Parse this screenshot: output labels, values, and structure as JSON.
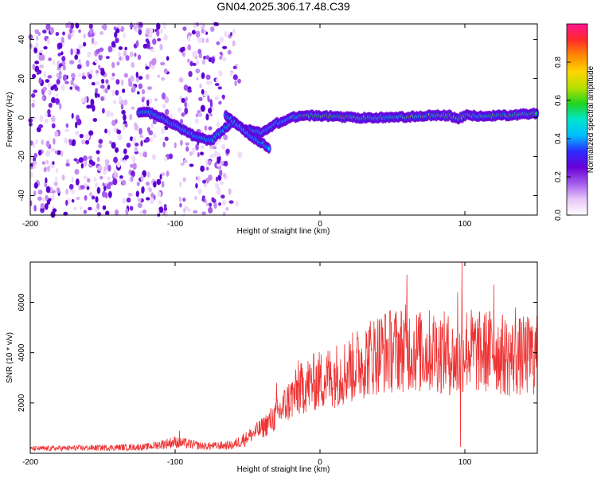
{
  "title": "GN04.2025.306.17.48.C39",
  "chart_data": [
    {
      "type": "heatmap",
      "name": "spectrogram",
      "xlabel": "Height of straight line (km)",
      "ylabel": "Frequency (Hz)",
      "xlim": [
        -200,
        150
      ],
      "ylim": [
        -50,
        48
      ],
      "xticks": [
        -200,
        -100,
        0,
        100
      ],
      "yticks": [
        -40,
        -20,
        0,
        20,
        40
      ],
      "noise_region_km": [
        -200,
        -55
      ],
      "signal_trace": {
        "x": [
          -125,
          -115,
          -105,
          -95,
          -85,
          -75,
          -68,
          -60,
          -52,
          -45,
          -40,
          -35,
          -30,
          -25,
          -20,
          -10,
          0,
          25,
          50,
          75,
          90,
          95,
          100,
          125,
          150
        ],
        "y": [
          3,
          2,
          -2,
          -6,
          -10,
          -12,
          -7,
          -2,
          -6,
          -7,
          -8,
          -5,
          -3,
          -2,
          0,
          1,
          1,
          0,
          0,
          1,
          1,
          -1,
          1,
          1,
          2
        ]
      },
      "secondary_trace": {
        "x": [
          -65,
          -55,
          -47,
          -40,
          -35
        ],
        "y": [
          1,
          -5,
          -10,
          -13,
          -16
        ]
      },
      "colorbar": {
        "label": "Normalized spectral amplitude",
        "range": [
          0,
          1
        ],
        "ticks": [
          "0.0",
          "0.2",
          "0.4",
          "0.6",
          "0.8"
        ],
        "colormap": [
          "#ffffff",
          "#e6c6f7",
          "#a259ec",
          "#6a00d6",
          "#2b2bff",
          "#00bfff",
          "#00e5cc",
          "#1fd41f",
          "#b8e000",
          "#ffd400",
          "#ff8a00",
          "#ff2a2a",
          "#ff1493"
        ]
      }
    },
    {
      "type": "line",
      "name": "snr",
      "xlabel": "Height of straight line (km)",
      "ylabel": "SNR (10 * v/v)",
      "xlim": [
        -200,
        150
      ],
      "ylim": [
        0,
        7600
      ],
      "xticks": [
        -200,
        -100,
        0,
        100
      ],
      "yticks": [
        2000,
        4000,
        6000
      ],
      "series": [
        {
          "name": "SNR",
          "color": "#ee3333",
          "envelope_x": [
            -200,
            -120,
            -100,
            -80,
            -60,
            -50,
            -40,
            -30,
            -20,
            -10,
            0,
            10,
            20,
            30,
            40,
            50,
            60,
            70,
            80,
            90,
            95,
            100,
            110,
            120,
            130,
            150
          ],
          "envelope_y": [
            180,
            250,
            450,
            280,
            320,
            650,
            1000,
            1500,
            2200,
            2700,
            2900,
            3100,
            3300,
            3700,
            4000,
            4100,
            4200,
            4000,
            4100,
            3900,
            3500,
            4200,
            4000,
            4100,
            3800,
            3900
          ],
          "spikes": [
            [
              -97,
              900
            ],
            [
              -30,
              2800
            ],
            [
              -15,
              3700
            ],
            [
              20,
              3800
            ],
            [
              45,
              5500
            ],
            [
              60,
              7100
            ],
            [
              70,
              5300
            ],
            [
              95,
              6400
            ],
            [
              98,
              7600
            ],
            [
              97,
              250
            ],
            [
              120,
              6700
            ],
            [
              135,
              5800
            ],
            [
              145,
              5000
            ]
          ]
        }
      ]
    }
  ]
}
